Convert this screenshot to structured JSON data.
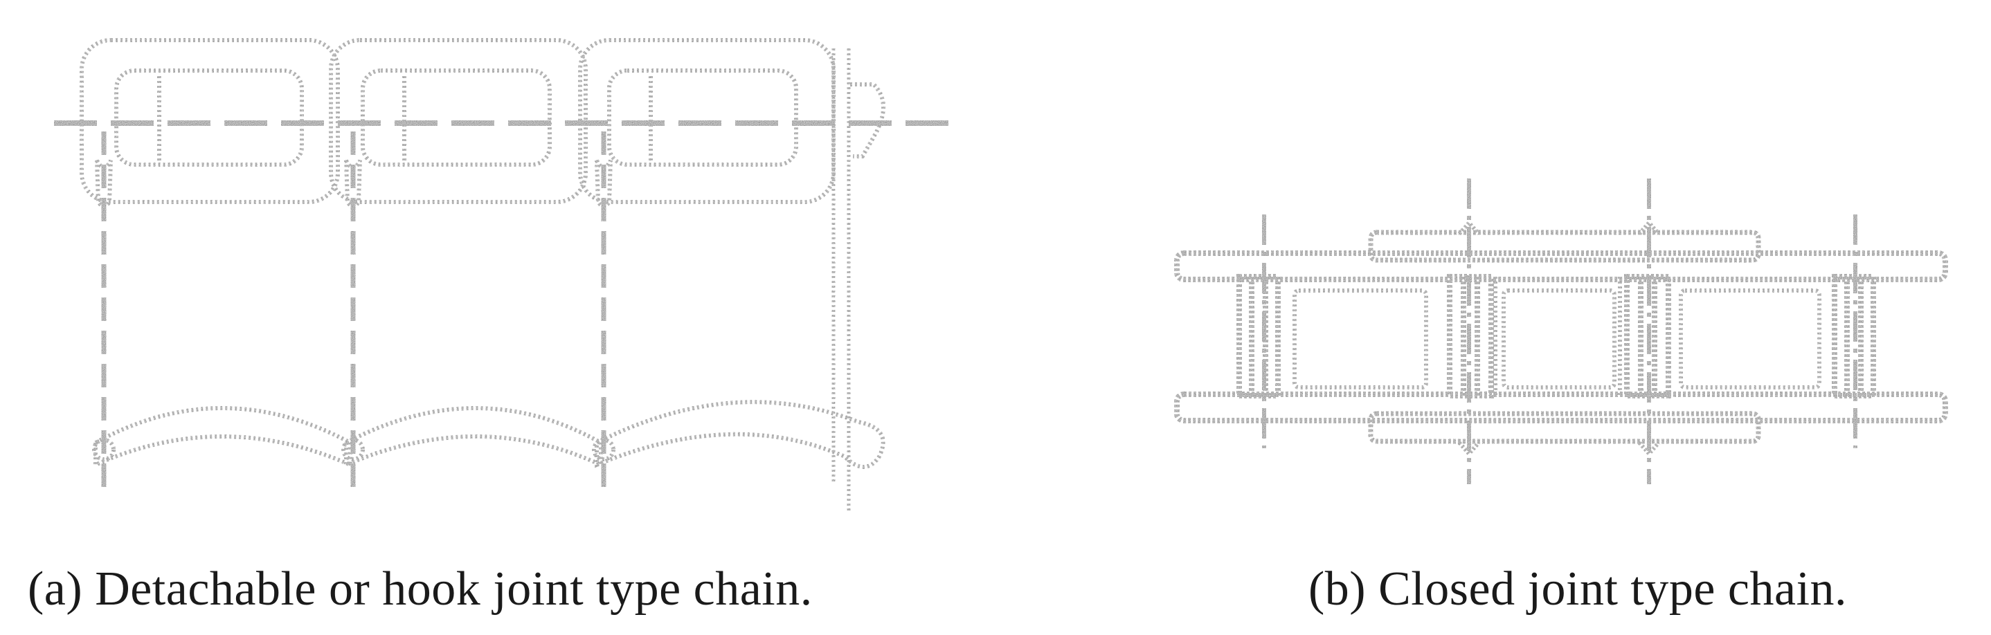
{
  "figure": {
    "panels": [
      {
        "id": "a",
        "caption": "(a) Detachable or hook joint type chain."
      },
      {
        "id": "b",
        "caption": "(b) Closed joint type chain."
      }
    ],
    "colors": {
      "ink": "#2a2a2a",
      "background": "#ffffff"
    }
  }
}
